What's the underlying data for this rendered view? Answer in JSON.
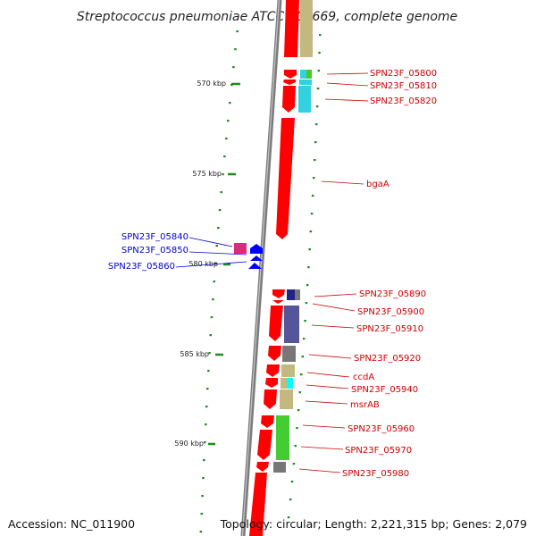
{
  "title": "Streptococcus pneumoniae ATCC 700669, complete genome",
  "footer": {
    "accession": "Accession: NC_011900",
    "topology": "Topology: circular; Length: 2,221,315 bp; Genes: 2,079"
  },
  "colors": {
    "forward_label": "#cc0000",
    "reverse_label": "#0000cc",
    "cds": "#ff0000",
    "reverse_cds": "#0000ff",
    "backbone": "#8a8a8a",
    "gc_dots": "#228822"
  },
  "ruler": [
    {
      "label": "570 kbp"
    },
    {
      "label": "575 kbp"
    },
    {
      "label": "580 kbp"
    },
    {
      "label": "585 kbp"
    },
    {
      "label": "590 kbp"
    }
  ],
  "forward_genes": [
    {
      "label": "SPN23F_05800",
      "cog_color": "#44cc22"
    },
    {
      "label": "SPN23F_05810",
      "cog_color": "#33d0e0"
    },
    {
      "label": "SPN23F_05820",
      "cog_color": "#33d0e0"
    },
    {
      "label": "bgaA",
      "cog_color": ""
    },
    {
      "label": "SPN23F_05890",
      "cog_color": "#222288"
    },
    {
      "label": "SPN23F_05900",
      "cog_color": "#555599"
    },
    {
      "label": "SPN23F_05910",
      "cog_color": "#555599"
    },
    {
      "label": "SPN23F_05920",
      "cog_color": "#777777"
    },
    {
      "label": "ccdA",
      "cog_color": "#c2b880"
    },
    {
      "label": "SPN23F_05940",
      "cog_color": "#00ffff"
    },
    {
      "label": "msrAB",
      "cog_color": "#c2b880"
    },
    {
      "label": "SPN23F_05960",
      "cog_color": "#44cc33"
    },
    {
      "label": "SPN23F_05970",
      "cog_color": "#44cc33"
    },
    {
      "label": "SPN23F_05980",
      "cog_color": "#777777"
    }
  ],
  "reverse_genes": [
    {
      "label": "SPN23F_05840",
      "cog_color": "#e0287f"
    },
    {
      "label": "SPN23F_05850",
      "cog_color": ""
    },
    {
      "label": "SPN23F_05860",
      "cog_color": ""
    }
  ]
}
